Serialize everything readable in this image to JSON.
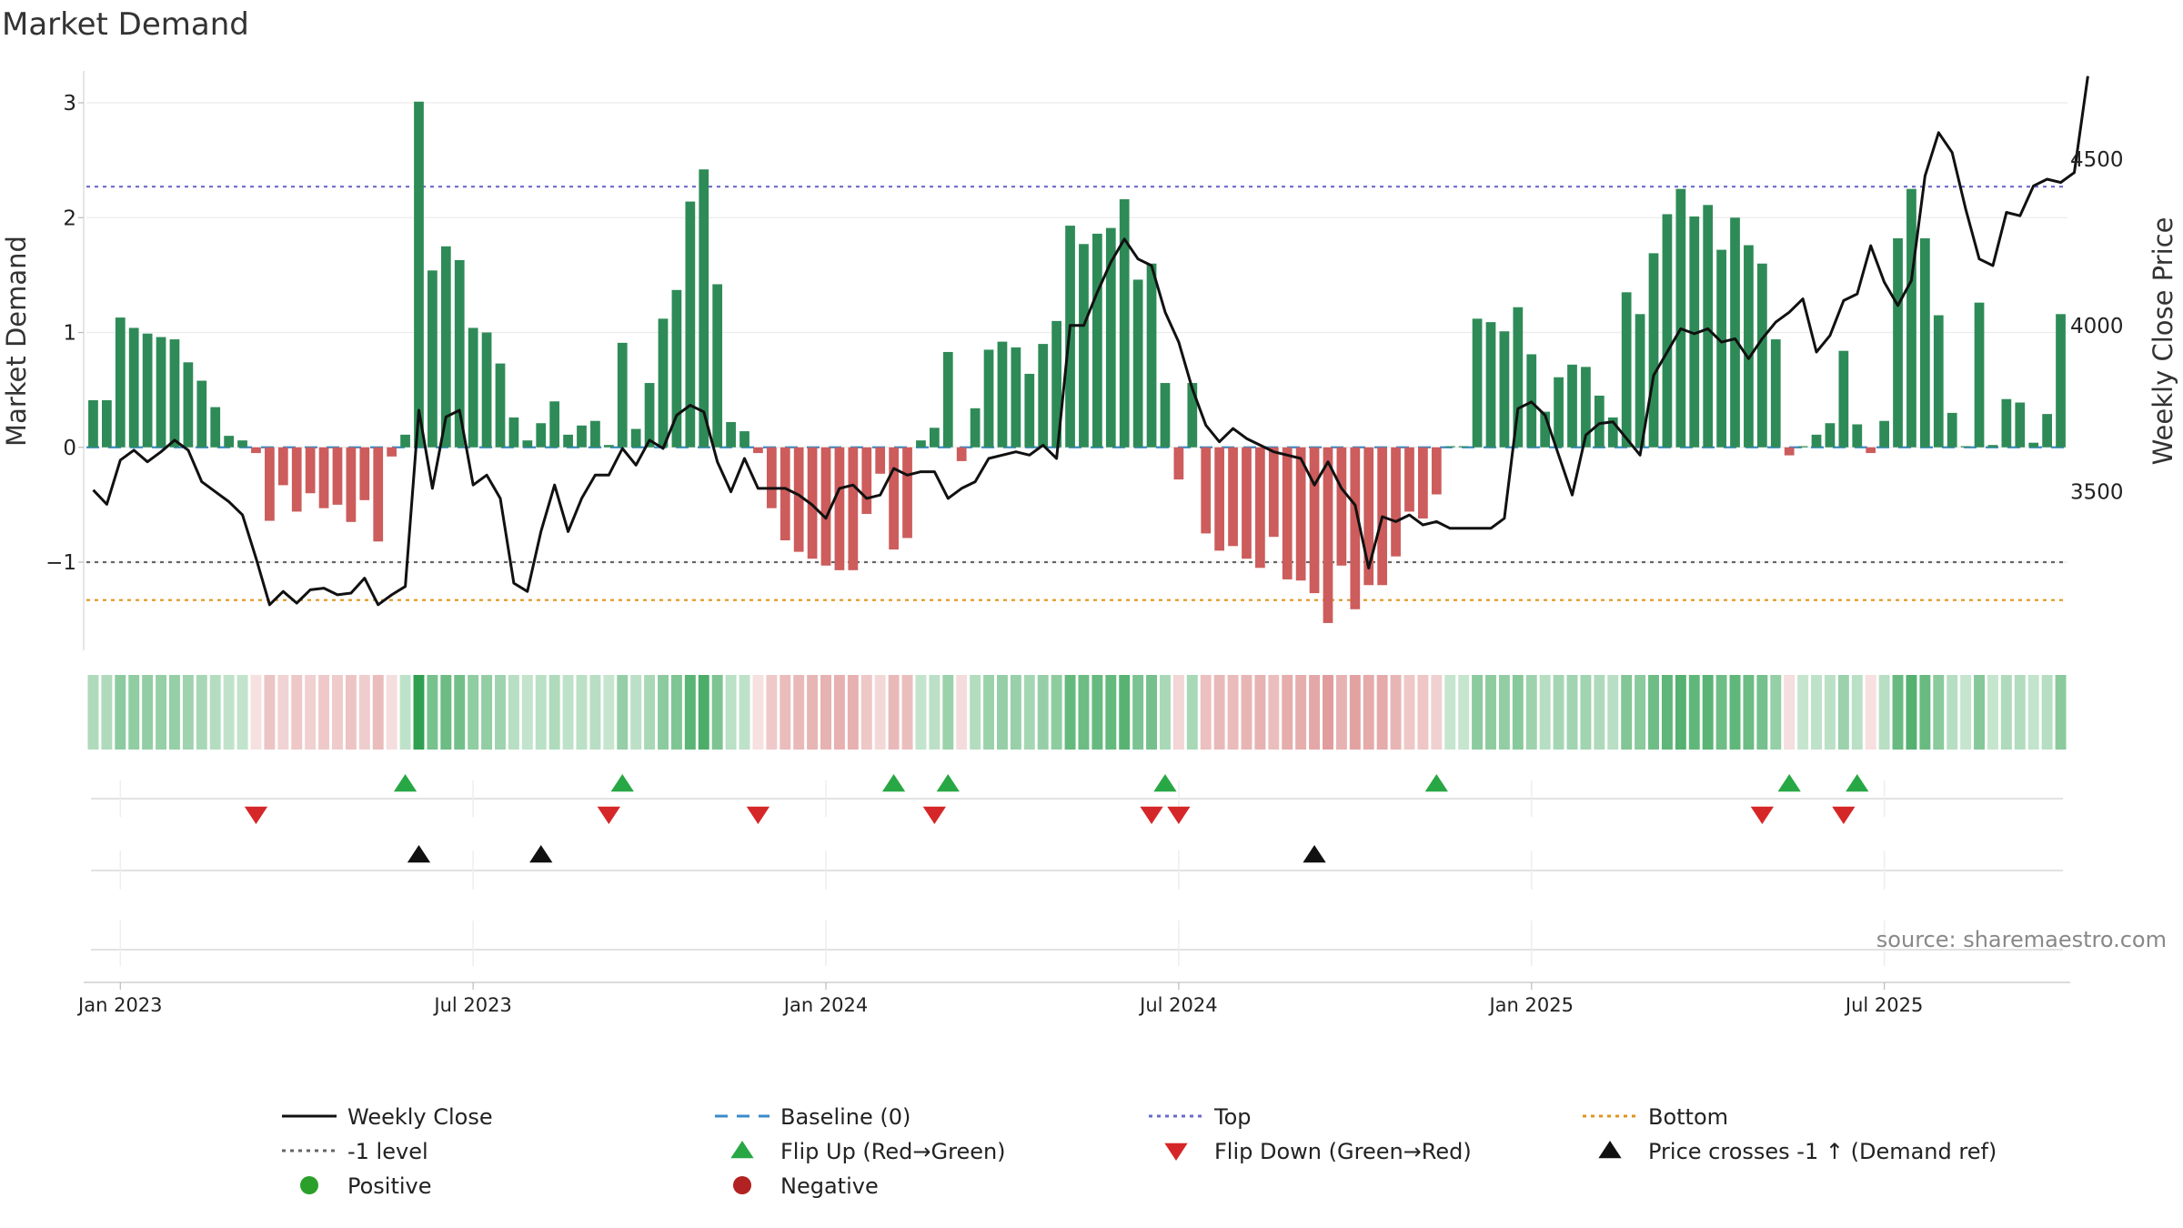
{
  "chart_data": {
    "type": "bar",
    "title": "Market Demand",
    "ylabel_left": "Market Demand",
    "ylabel_right": "Weekly Close Price",
    "source": "source: sharemaestro.com",
    "ylim_left": [
      -1.75,
      3.1
    ],
    "ylim_right": [
      3020,
      4760
    ],
    "yticks_left": [
      {
        "v": 3,
        "label": "3"
      },
      {
        "v": 2,
        "label": "2"
      },
      {
        "v": 1,
        "label": "1"
      },
      {
        "v": 0,
        "label": "0"
      },
      {
        "v": -1,
        "label": "−1"
      }
    ],
    "yticks_right": [
      {
        "v": 4500,
        "label": "4500"
      },
      {
        "v": 4000,
        "label": "4000"
      },
      {
        "v": 3500,
        "label": "3500"
      }
    ],
    "reference_lines": [
      {
        "name": "Top",
        "value": 2.27,
        "color": "#6a6acd",
        "dash": "4,5"
      },
      {
        "name": "Bottom",
        "value": -1.33,
        "color": "#e0941e",
        "dash": "4,5"
      },
      {
        "name": "-1 level",
        "value": -1.0,
        "color": "#666666",
        "dash": "4,5"
      },
      {
        "name": "Baseline (0)",
        "value": 0,
        "color": "#3b8ac9",
        "dash": "14,10"
      }
    ],
    "x_labels": [
      {
        "week": 2,
        "label": "Jan 2023"
      },
      {
        "week": 28,
        "label": "Jul 2023"
      },
      {
        "week": 54,
        "label": "Jan 2024"
      },
      {
        "week": 80,
        "label": "Jul 2024"
      },
      {
        "week": 106,
        "label": "Jan 2025"
      },
      {
        "week": 132,
        "label": "Jul 2025"
      }
    ],
    "demand": [
      0.41,
      0.41,
      1.13,
      1.04,
      0.99,
      0.96,
      0.94,
      0.74,
      0.58,
      0.35,
      0.1,
      0.06,
      -0.05,
      -0.64,
      -0.33,
      -0.56,
      -0.4,
      -0.53,
      -0.5,
      -0.65,
      -0.46,
      -0.82,
      -0.08,
      0.11,
      3.01,
      1.54,
      1.75,
      1.63,
      1.04,
      1.0,
      0.73,
      0.26,
      0.06,
      0.21,
      0.4,
      0.11,
      0.19,
      0.23,
      0.02,
      0.91,
      0.16,
      0.56,
      1.12,
      1.37,
      2.14,
      2.42,
      1.42,
      0.22,
      0.14,
      -0.05,
      -0.53,
      -0.81,
      -0.91,
      -0.97,
      -1.03,
      -1.07,
      -1.07,
      -0.58,
      -0.23,
      -0.89,
      -0.79,
      0.06,
      0.17,
      0.83,
      -0.12,
      0.34,
      0.85,
      0.92,
      0.87,
      0.64,
      0.9,
      1.1,
      1.93,
      1.77,
      1.86,
      1.91,
      2.16,
      1.46,
      1.6,
      0.56,
      -0.28,
      0.56,
      -0.75,
      -0.9,
      -0.86,
      -0.97,
      -1.05,
      -0.78,
      -1.15,
      -1.16,
      -1.27,
      -1.53,
      -1.03,
      -1.41,
      -1.2,
      -1.2,
      -0.95,
      -0.56,
      -0.62,
      -0.41,
      0.01,
      0.01,
      1.12,
      1.09,
      1.01,
      1.22,
      0.81,
      0.31,
      0.61,
      0.72,
      0.7,
      0.45,
      0.26,
      1.35,
      1.16,
      1.69,
      2.03,
      2.25,
      2.01,
      2.11,
      1.72,
      2.0,
      1.76,
      1.6,
      0.94,
      -0.07,
      0.01,
      0.11,
      0.21,
      0.84,
      0.2,
      -0.05,
      0.23,
      1.82,
      2.25,
      1.82,
      1.15,
      0.3,
      0.01,
      1.26,
      0.02,
      0.42,
      0.39,
      0.04,
      0.29,
      1.16
    ],
    "weekly_close": [
      3505,
      3462,
      3595,
      3625,
      3590,
      3620,
      3655,
      3625,
      3530,
      3500,
      3470,
      3430,
      3300,
      3160,
      3200,
      3165,
      3205,
      3210,
      3190,
      3195,
      3240,
      3160,
      3190,
      3215,
      3745,
      3510,
      3725,
      3745,
      3520,
      3550,
      3480,
      3225,
      3200,
      3380,
      3520,
      3380,
      3480,
      3550,
      3550,
      3630,
      3580,
      3655,
      3630,
      3730,
      3760,
      3740,
      3590,
      3500,
      3600,
      3510,
      3510,
      3510,
      3490,
      3460,
      3420,
      3510,
      3520,
      3480,
      3490,
      3570,
      3550,
      3560,
      3560,
      3480,
      3510,
      3530,
      3600,
      3610,
      3620,
      3610,
      3640,
      3600,
      4000,
      4000,
      4100,
      4190,
      4260,
      4200,
      4180,
      4040,
      3950,
      3810,
      3700,
      3650,
      3690,
      3660,
      3640,
      3620,
      3610,
      3600,
      3520,
      3590,
      3510,
      3460,
      3270,
      3425,
      3410,
      3430,
      3400,
      3410,
      3390,
      3390,
      3390,
      3390,
      3420,
      3750,
      3770,
      3730,
      3610,
      3490,
      3670,
      3705,
      3710,
      3660,
      3610,
      3850,
      3920,
      3990,
      3975,
      3990,
      3950,
      3960,
      3900,
      3960,
      4010,
      4040,
      4080,
      3920,
      3970,
      4075,
      4095,
      4240,
      4130,
      4060,
      4135,
      4450,
      4580,
      4520,
      4350,
      4200,
      4180,
      4340,
      4330,
      4420,
      4440,
      4430,
      4460,
      4750
    ],
    "flip_up_weeks": [
      23,
      39,
      59,
      63,
      79,
      99,
      125,
      130
    ],
    "flip_down_weeks": [
      12,
      38,
      49,
      62,
      78,
      80,
      123,
      129
    ],
    "price_cross_weeks": [
      24,
      33,
      90
    ],
    "colors": {
      "positive": "#2e8b57",
      "negative": "#cd5c5c",
      "line": "#111111",
      "flip_up": "#28a745",
      "flip_down": "#d62728",
      "cross": "#111111",
      "positive_dot": "#2aa02b",
      "negative_dot": "#b22222"
    },
    "legend": [
      {
        "key": "weekly_close",
        "label": "Weekly Close",
        "marker": "line"
      },
      {
        "key": "baseline",
        "label": "Baseline (0)",
        "marker": "dash-blue"
      },
      {
        "key": "top",
        "label": "Top",
        "marker": "dot-purple"
      },
      {
        "key": "bottom",
        "label": "Bottom",
        "marker": "dot-orange"
      },
      {
        "key": "minus1",
        "label": "-1 level",
        "marker": "dot-gray"
      },
      {
        "key": "flip_up",
        "label": "Flip Up (Red→Green)",
        "marker": "tri-up-green"
      },
      {
        "key": "flip_down",
        "label": "Flip Down (Green→Red)",
        "marker": "tri-down-red"
      },
      {
        "key": "price_cross",
        "label": "Price crosses -1 ↑ (Demand ref)",
        "marker": "tri-up-black"
      },
      {
        "key": "positive",
        "label": "Positive",
        "marker": "circle-green"
      },
      {
        "key": "negative",
        "label": "Negative",
        "marker": "circle-red"
      }
    ]
  }
}
